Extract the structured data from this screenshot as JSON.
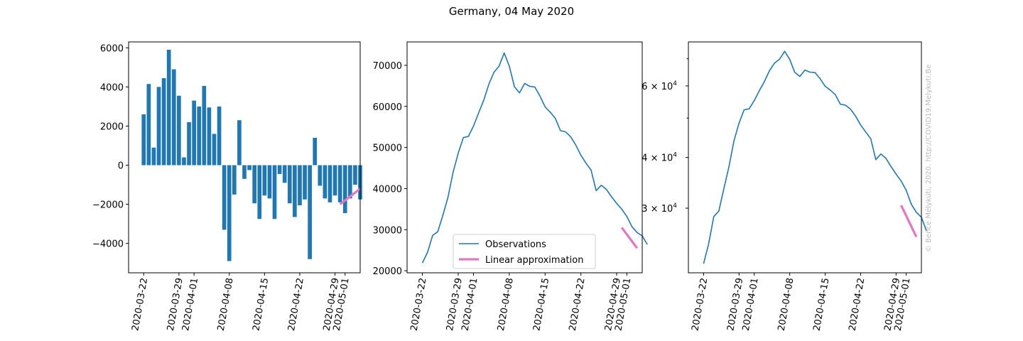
{
  "title": "Germany, 04 May 2020",
  "credit": "© Bence Mélykúti, 2020. http://COVID19.Melykuti.Be",
  "colors": {
    "observations": "#1f77b4",
    "approximation": "#e377c2"
  },
  "legend": {
    "observations": "Observations",
    "approximation": "Linear approximation"
  },
  "x_ticks": [
    "2020-03-22",
    "2020-03-29",
    "2020-04-01",
    "2020-04-08",
    "2020-04-15",
    "2020-04-22",
    "2020-04-29",
    "2020-05-01"
  ],
  "chart_data": [
    {
      "type": "bar",
      "x_start": "2020-03-22",
      "x_end": "2020-05-03",
      "xlim": [
        "2020-03-19",
        "2020-05-04"
      ],
      "ylim": [
        -5500,
        6300
      ],
      "y_ticks": [
        -4000,
        -2000,
        0,
        2000,
        4000,
        6000
      ],
      "y_tick_labels": [
        "−4000",
        "−2000",
        "0",
        "2000",
        "4000",
        "6000"
      ],
      "values": [
        2600,
        4150,
        900,
        4000,
        4450,
        5900,
        4900,
        3550,
        400,
        2200,
        3300,
        3000,
        4050,
        2950,
        1600,
        3000,
        -3300,
        -4900,
        -1500,
        2300,
        -700,
        -250,
        -1950,
        -2750,
        -1550,
        -1700,
        -2750,
        -450,
        -900,
        -1950,
        -2650,
        -2050,
        -1750,
        -4800,
        1400,
        -1050,
        -1700,
        -1900,
        -1550,
        -1900,
        -2450,
        -1700,
        -1000,
        -1750
      ],
      "approximation": {
        "x": [
          "2020-04-30",
          "2020-05-04"
        ],
        "y": [
          -2000,
          -1200
        ]
      }
    },
    {
      "type": "line",
      "x_start": "2020-03-22",
      "xlim": [
        "2020-03-19",
        "2020-05-04"
      ],
      "ylim": [
        19500,
        75700
      ],
      "y_ticks": [
        20000,
        30000,
        40000,
        50000,
        60000,
        70000
      ],
      "y_tick_labels": [
        "20000",
        "30000",
        "40000",
        "50000",
        "60000",
        "70000"
      ],
      "values": [
        21900,
        24500,
        28600,
        29500,
        33500,
        37900,
        44000,
        48600,
        52400,
        52700,
        55200,
        58400,
        61500,
        65400,
        68300,
        69800,
        73000,
        69800,
        64800,
        63300,
        65600,
        64900,
        64700,
        62500,
        59900,
        58600,
        57100,
        54100,
        53800,
        52600,
        50600,
        48100,
        46200,
        44500,
        39500,
        40800,
        39800,
        38000,
        36400,
        35000,
        33200,
        30700,
        29300,
        28500,
        26400
      ],
      "approximation": {
        "x": [
          "2020-04-30",
          "2020-05-03"
        ],
        "y": [
          30500,
          25500
        ]
      },
      "legend_position": "lower center"
    },
    {
      "type": "line",
      "scale": "log",
      "x_start": "2020-03-22",
      "xlim": [
        "2020-03-19",
        "2020-05-04"
      ],
      "ylim": [
        20800,
        77000
      ],
      "y_ticks": [
        30000,
        40000,
        60000
      ],
      "y_tick_labels": [
        "3 × 10",
        "4 × 10",
        "6 × 10"
      ],
      "y_tick_exponent": "4",
      "y_minor_ticks": [
        50000,
        70000
      ],
      "values": [
        21900,
        24500,
        28600,
        29500,
        33500,
        37900,
        44000,
        48600,
        52400,
        52700,
        55200,
        58400,
        61500,
        65400,
        68300,
        69800,
        73000,
        69800,
        64800,
        63300,
        65600,
        64900,
        64700,
        62500,
        59900,
        58600,
        57100,
        54100,
        53800,
        52600,
        50600,
        48100,
        46200,
        44500,
        39500,
        40800,
        39800,
        38000,
        36400,
        35000,
        33200,
        30700,
        29300,
        28500,
        26400
      ],
      "approximation": {
        "x": [
          "2020-04-30",
          "2020-05-03"
        ],
        "y": [
          30500,
          25500
        ]
      }
    }
  ]
}
